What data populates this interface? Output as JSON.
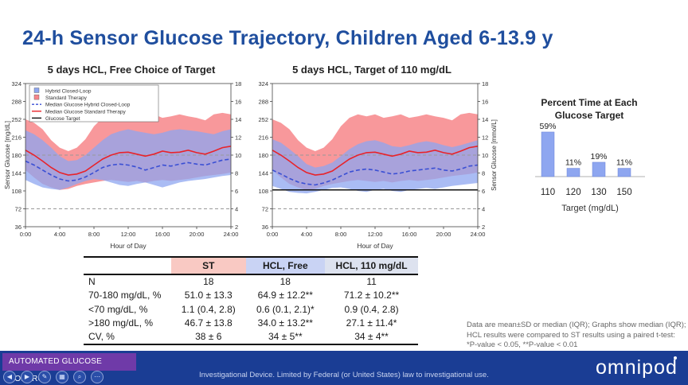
{
  "slide": {
    "title": "24-h Sensor Glucose Trajectory, Children Aged 6-13.9 y"
  },
  "colors": {
    "hcl": "#3a4fd4",
    "st": "#e8232a",
    "hcl_band": "#8ea6f0",
    "st_band": "#f7868a",
    "title_blue": "#1f4e9e",
    "footer": "#1a3d94",
    "badge": "#6f3aa8"
  },
  "legend": {
    "items": [
      {
        "label": "Hybrid Closed-Loop",
        "kind": "box",
        "color": "#8ea6f0"
      },
      {
        "label": "Standard Therapy",
        "kind": "box",
        "color": "#f7868a"
      },
      {
        "label": "Median Glucose Hybrid Closed-Loop",
        "kind": "dash",
        "color": "#3a4fd4"
      },
      {
        "label": "Median Glucose Standard Therapy",
        "kind": "line",
        "color": "#e8232a"
      },
      {
        "label": "Glucose Target",
        "kind": "line",
        "color": "#111111"
      }
    ]
  },
  "chart_data": [
    {
      "type": "area",
      "title": "5 days HCL, Free Choice of Target",
      "xlabel": "Hour of Day",
      "ylabel": "Sensor Glucose [mg/dL]",
      "y2label": "",
      "xlim": [
        0,
        24
      ],
      "ylim": [
        36,
        324
      ],
      "y2lim": [
        2,
        18
      ],
      "xticks": [
        "0:00",
        "4:00",
        "8:00",
        "12:00",
        "16:00",
        "20:00",
        "24:00"
      ],
      "yticks": [
        36,
        72,
        108,
        144,
        180,
        216,
        252,
        288,
        324
      ],
      "y2ticks": [
        2,
        4,
        6,
        8,
        10,
        12,
        14,
        16,
        18
      ],
      "reference_lines_dashed": [
        72,
        180
      ],
      "target_line": null,
      "hours": [
        0,
        1,
        2,
        3,
        4,
        5,
        6,
        7,
        8,
        9,
        10,
        11,
        12,
        13,
        14,
        15,
        16,
        17,
        18,
        19,
        20,
        21,
        22,
        23,
        24
      ],
      "series": [
        {
          "name": "Standard Therapy",
          "kind": "band",
          "low": [
            150,
            135,
            122,
            115,
            110,
            112,
            118,
            122,
            125,
            128,
            130,
            128,
            126,
            128,
            125,
            128,
            130,
            128,
            130,
            132,
            135,
            138,
            140,
            142,
            145
          ],
          "high": [
            252,
            245,
            232,
            210,
            195,
            188,
            195,
            212,
            238,
            255,
            262,
            258,
            262,
            255,
            258,
            262,
            255,
            258,
            262,
            258,
            255,
            250,
            262,
            265,
            262
          ]
        },
        {
          "name": "Hybrid Closed-Loop",
          "kind": "band",
          "low": [
            130,
            122,
            115,
            112,
            110,
            115,
            122,
            128,
            132,
            130,
            125,
            120,
            118,
            122,
            125,
            120,
            115,
            120,
            125,
            128,
            130,
            132,
            135,
            138,
            140
          ],
          "high": [
            230,
            222,
            210,
            195,
            178,
            168,
            170,
            180,
            195,
            210,
            222,
            228,
            232,
            228,
            225,
            222,
            225,
            230,
            232,
            230,
            228,
            225,
            222,
            228,
            232
          ]
        },
        {
          "name": "Median Glucose Standard Therapy",
          "kind": "line",
          "values": [
            190,
            180,
            168,
            155,
            145,
            140,
            142,
            148,
            160,
            172,
            180,
            185,
            186,
            182,
            178,
            182,
            188,
            185,
            186,
            190,
            185,
            182,
            188,
            195,
            198
          ]
        },
        {
          "name": "Median Glucose Hybrid Closed-Loop",
          "kind": "dash",
          "values": [
            168,
            160,
            150,
            140,
            132,
            128,
            130,
            136,
            145,
            155,
            160,
            162,
            160,
            156,
            150,
            155,
            160,
            158,
            162,
            165,
            162,
            160,
            165,
            170,
            172
          ]
        }
      ]
    },
    {
      "type": "area",
      "title": "5 days HCL, Target of 110 mg/dL",
      "xlabel": "Hour of Day",
      "ylabel": "",
      "y2label": "Sensor Glucose [mmol/L]",
      "xlim": [
        0,
        24
      ],
      "ylim": [
        36,
        324
      ],
      "y2lim": [
        2,
        18
      ],
      "xticks": [
        "0:00",
        "4:00",
        "8:00",
        "12:00",
        "16:00",
        "20:00",
        "24:00"
      ],
      "yticks": [
        36,
        72,
        108,
        144,
        180,
        216,
        252,
        288,
        324
      ],
      "y2ticks": [
        2,
        4,
        6,
        8,
        10,
        12,
        14,
        16,
        18
      ],
      "reference_lines_dashed": [
        72,
        180
      ],
      "target_line": 110,
      "hours": [
        0,
        1,
        2,
        3,
        4,
        5,
        6,
        7,
        8,
        9,
        10,
        11,
        12,
        13,
        14,
        15,
        16,
        17,
        18,
        19,
        20,
        21,
        22,
        23,
        24
      ],
      "series": [
        {
          "name": "Standard Therapy",
          "kind": "band",
          "low": [
            150,
            135,
            122,
            115,
            110,
            112,
            118,
            122,
            125,
            128,
            130,
            128,
            126,
            128,
            125,
            128,
            130,
            128,
            130,
            132,
            135,
            138,
            140,
            142,
            145
          ],
          "high": [
            252,
            245,
            232,
            210,
            195,
            188,
            195,
            212,
            238,
            255,
            262,
            258,
            262,
            255,
            258,
            262,
            255,
            258,
            262,
            258,
            255,
            250,
            262,
            265,
            262
          ]
        },
        {
          "name": "Hybrid Closed-Loop",
          "kind": "band",
          "low": [
            118,
            112,
            106,
            104,
            103,
            106,
            110,
            114,
            115,
            112,
            108,
            106,
            110,
            112,
            108,
            106,
            110,
            112,
            114,
            112,
            115,
            118,
            120,
            122,
            124
          ],
          "high": [
            212,
            205,
            192,
            178,
            162,
            155,
            158,
            165,
            178,
            192,
            202,
            208,
            210,
            205,
            198,
            196,
            200,
            205,
            208,
            205,
            200,
            196,
            200,
            205,
            210
          ]
        },
        {
          "name": "Median Glucose Standard Therapy",
          "kind": "line",
          "values": [
            190,
            180,
            168,
            155,
            145,
            140,
            142,
            148,
            160,
            172,
            180,
            185,
            186,
            182,
            178,
            182,
            188,
            185,
            186,
            190,
            185,
            182,
            188,
            195,
            198
          ]
        },
        {
          "name": "Median Glucose Hybrid Closed-Loop",
          "kind": "dash",
          "values": [
            150,
            142,
            133,
            126,
            122,
            120,
            124,
            130,
            138,
            146,
            150,
            152,
            150,
            146,
            142,
            144,
            148,
            150,
            152,
            154,
            150,
            148,
            152,
            158,
            160
          ]
        }
      ]
    },
    {
      "type": "bar",
      "title": "Percent Time at Each Glucose Target",
      "xlabel": "Target (mg/dL)",
      "ylabel": "",
      "ylim": [
        0,
        60
      ],
      "categories": [
        "110",
        "120",
        "130",
        "150"
      ],
      "values": [
        59,
        11,
        19,
        11
      ],
      "labels": [
        "59%",
        "11%",
        "19%",
        "11%"
      ],
      "color": "#8ea6f0"
    }
  ],
  "table": {
    "headers": [
      "",
      "ST",
      "HCL, Free",
      "HCL, 110 mg/dL"
    ],
    "rows": [
      [
        "N",
        "18",
        "18",
        "11"
      ],
      [
        "70-180 mg/dL, %",
        "51.0 ± 13.3",
        "64.9 ± 12.2**",
        "71.2 ± 10.2**"
      ],
      [
        "<70 mg/dL, %",
        "1.1 (0.4, 2.8)",
        "0.6 (0.1, 2.1)*",
        "0.9 (0.4, 2.8)"
      ],
      [
        ">180 mg/dL, %",
        "46.7 ± 13.8",
        "34.0 ± 13.2**",
        "27.1 ± 11.4*"
      ],
      [
        "CV, %",
        "38 ± 6",
        "34 ± 5**",
        "34 ± 4**"
      ]
    ]
  },
  "footnote": {
    "lines": [
      "Data are mean±SD or median (IQR); Graphs show median (IQR);",
      "HCL results were compared to ST results using a paired t-test:",
      "*P-value < 0.05, **P-value < 0.01"
    ]
  },
  "footer": {
    "badge": "AUTOMATED GLUCOSE CONTROL",
    "disclaimer": "Investigational Device. Limited by Federal (or United States) law to investigational use.",
    "logo": "omnipod",
    "controls": [
      {
        "name": "prev-slide-button",
        "icon": "chevron-left-icon",
        "glyph": "◀"
      },
      {
        "name": "next-slide-button",
        "icon": "chevron-right-icon",
        "glyph": "▶"
      },
      {
        "name": "pen-tool-button",
        "icon": "pen-icon",
        "glyph": "✎"
      },
      {
        "name": "slides-grid-button",
        "icon": "grid-icon",
        "glyph": "▦"
      },
      {
        "name": "zoom-button",
        "icon": "magnifier-icon",
        "glyph": "⌕"
      },
      {
        "name": "more-options-button",
        "icon": "ellipsis-icon",
        "glyph": "⋯"
      }
    ]
  }
}
